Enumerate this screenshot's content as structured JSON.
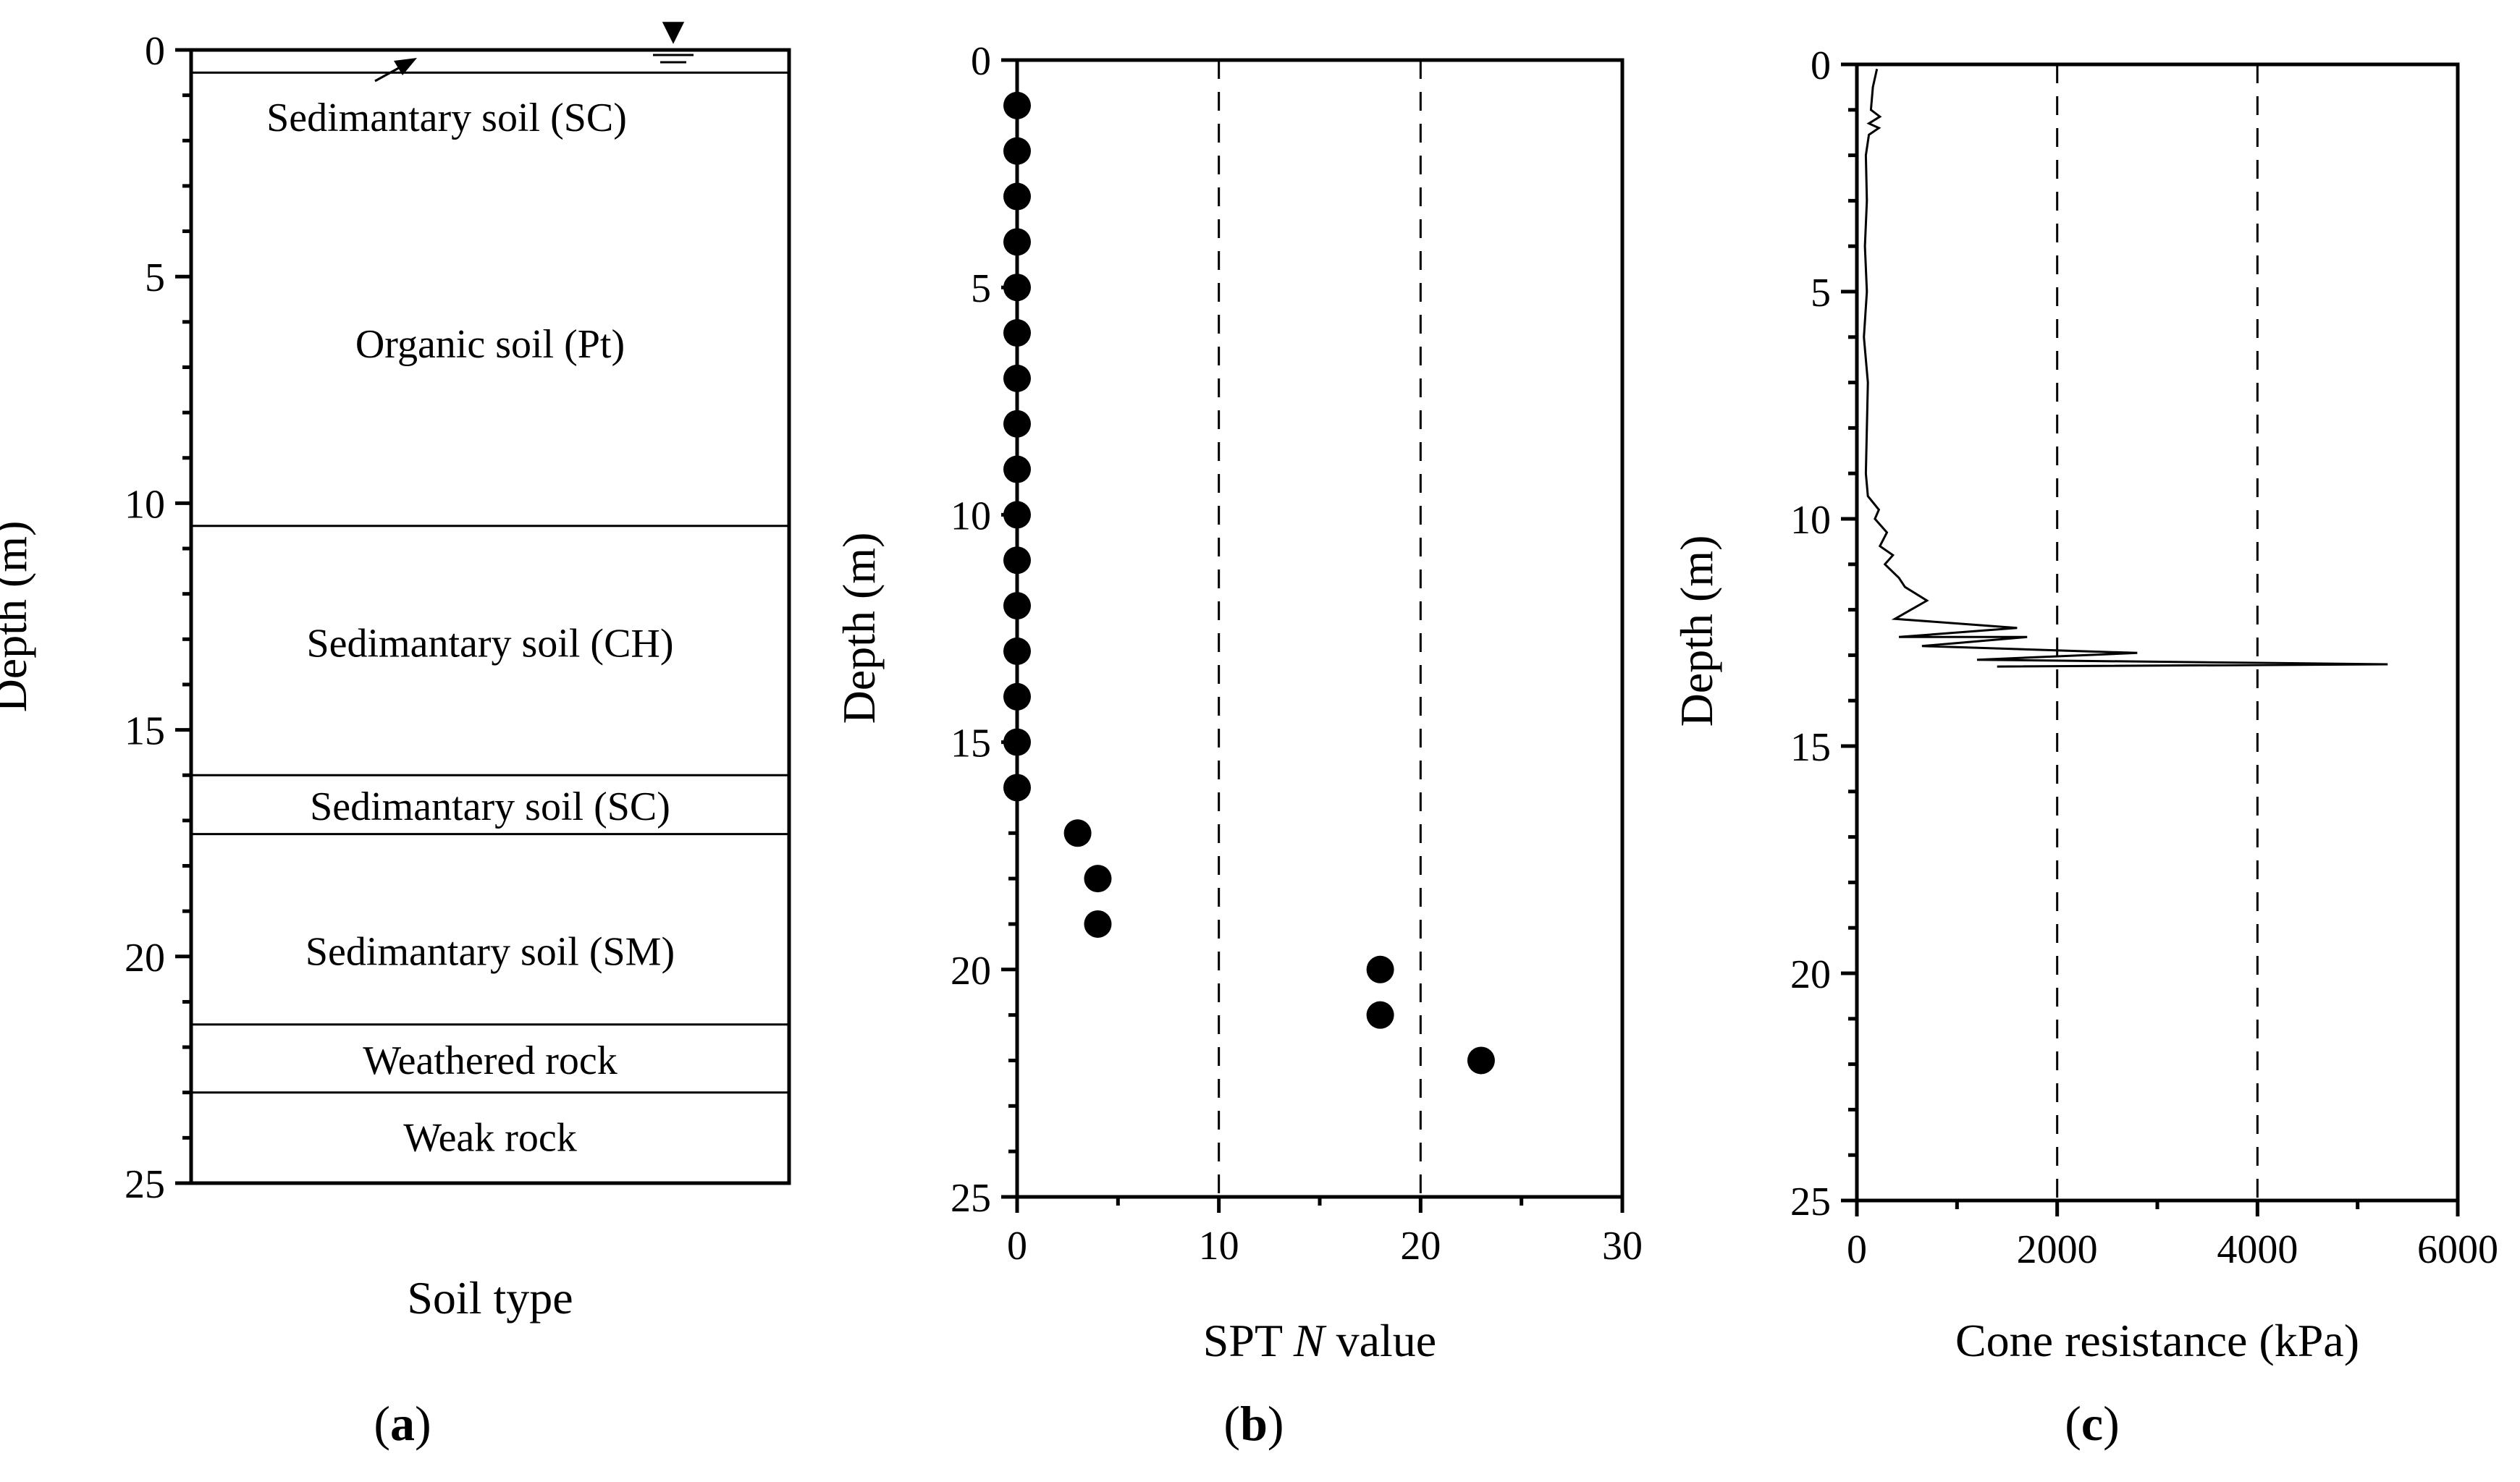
{
  "chart_data": [
    {
      "type": "table",
      "panel_label": "(a)",
      "panel_letter": "a",
      "title": "",
      "xlabel": "Soil type",
      "ylabel": "Depth (m)",
      "ylim": [
        0,
        25
      ],
      "yticks": [
        "0",
        "5",
        "10",
        "15",
        "20",
        "25"
      ],
      "groundwater_symbol": "▼",
      "layers": [
        {
          "name": "Sedimantary soil (SC)",
          "top": 0.5,
          "bottom": 10.5,
          "label_depth": 1.5
        },
        {
          "name": "Organic soil (Pt)",
          "top": 0.5,
          "bottom": 10.5,
          "label_depth": 6.5
        },
        {
          "name": "Sedimantary soil (CH)",
          "top": 10.5,
          "bottom": 16.0,
          "label_depth": 13.1
        },
        {
          "name": "Sedimantary soil (SC)",
          "top": 16.0,
          "bottom": 17.3,
          "label_depth": 16.7
        },
        {
          "name": "Sedimantary soil (SM)",
          "top": 17.3,
          "bottom": 21.5,
          "label_depth": 19.9
        },
        {
          "name": "Weathered rock",
          "top": 21.5,
          "bottom": 23.0,
          "label_depth": 22.3
        },
        {
          "name": "Weak rock",
          "top": 23.0,
          "bottom": 25.0,
          "label_depth": 24.0
        }
      ],
      "boundaries": [
        0.5,
        10.5,
        16.0,
        17.3,
        21.5,
        23.0
      ]
    },
    {
      "type": "scatter",
      "panel_label": "(b)",
      "panel_letter": "b",
      "title": "",
      "xlabel_pre": "SPT ",
      "xlabel_italic": "N",
      "xlabel_post": " value",
      "ylabel": "Depth (m)",
      "xlim": [
        0,
        30
      ],
      "ylim": [
        0,
        25
      ],
      "xticks": [
        "0",
        "10",
        "20",
        "30"
      ],
      "yticks": [
        "0",
        "5",
        "10",
        "15",
        "20",
        "25"
      ],
      "dashed_gridlines_x": [
        10,
        20
      ],
      "series": [
        {
          "name": "SPT N",
          "points": [
            {
              "x": 0,
              "y": 1
            },
            {
              "x": 0,
              "y": 2
            },
            {
              "x": 0,
              "y": 3
            },
            {
              "x": 0,
              "y": 4
            },
            {
              "x": 0,
              "y": 5
            },
            {
              "x": 0,
              "y": 6
            },
            {
              "x": 0,
              "y": 7
            },
            {
              "x": 0,
              "y": 8
            },
            {
              "x": 0,
              "y": 9
            },
            {
              "x": 0,
              "y": 10
            },
            {
              "x": 0,
              "y": 11
            },
            {
              "x": 0,
              "y": 12
            },
            {
              "x": 0,
              "y": 13
            },
            {
              "x": 0,
              "y": 14
            },
            {
              "x": 0,
              "y": 15
            },
            {
              "x": 0,
              "y": 16
            },
            {
              "x": 3,
              "y": 17
            },
            {
              "x": 4,
              "y": 18
            },
            {
              "x": 4,
              "y": 19
            },
            {
              "x": 18,
              "y": 20
            },
            {
              "x": 18,
              "y": 21
            },
            {
              "x": 23,
              "y": 22
            }
          ]
        }
      ]
    },
    {
      "type": "line",
      "panel_label": "(c)",
      "panel_letter": "c",
      "title": "",
      "xlabel": "Cone resistance (kPa)",
      "ylabel": "Depth (m)",
      "xlim": [
        0,
        6000
      ],
      "ylim": [
        0,
        25
      ],
      "xticks": [
        "0",
        "2000",
        "4000",
        "6000"
      ],
      "yticks": [
        "0",
        "5",
        "10",
        "15",
        "20",
        "25"
      ],
      "dashed_gridlines_x": [
        2000,
        4000
      ],
      "series": [
        {
          "name": "Cone resistance",
          "points": [
            {
              "x": 200,
              "y": 0.1
            },
            {
              "x": 160,
              "y": 0.5
            },
            {
              "x": 140,
              "y": 1.0
            },
            {
              "x": 230,
              "y": 1.15
            },
            {
              "x": 120,
              "y": 1.3
            },
            {
              "x": 220,
              "y": 1.4
            },
            {
              "x": 120,
              "y": 1.55
            },
            {
              "x": 90,
              "y": 2.0
            },
            {
              "x": 100,
              "y": 3.0
            },
            {
              "x": 80,
              "y": 4.0
            },
            {
              "x": 100,
              "y": 5.0
            },
            {
              "x": 70,
              "y": 6.0
            },
            {
              "x": 110,
              "y": 7.0
            },
            {
              "x": 100,
              "y": 8.0
            },
            {
              "x": 90,
              "y": 9.0
            },
            {
              "x": 110,
              "y": 9.5
            },
            {
              "x": 220,
              "y": 9.8
            },
            {
              "x": 180,
              "y": 10.0
            },
            {
              "x": 300,
              "y": 10.3
            },
            {
              "x": 230,
              "y": 10.6
            },
            {
              "x": 360,
              "y": 10.8
            },
            {
              "x": 280,
              "y": 11.0
            },
            {
              "x": 420,
              "y": 11.3
            },
            {
              "x": 480,
              "y": 11.5
            },
            {
              "x": 700,
              "y": 11.8
            },
            {
              "x": 540,
              "y": 12.0
            },
            {
              "x": 380,
              "y": 12.2
            },
            {
              "x": 1600,
              "y": 12.4
            },
            {
              "x": 420,
              "y": 12.6
            },
            {
              "x": 1700,
              "y": 12.6
            },
            {
              "x": 650,
              "y": 12.8
            },
            {
              "x": 2800,
              "y": 12.95
            },
            {
              "x": 1200,
              "y": 13.1
            },
            {
              "x": 5300,
              "y": 13.2
            },
            {
              "x": 1400,
              "y": 13.25
            }
          ]
        }
      ]
    }
  ]
}
